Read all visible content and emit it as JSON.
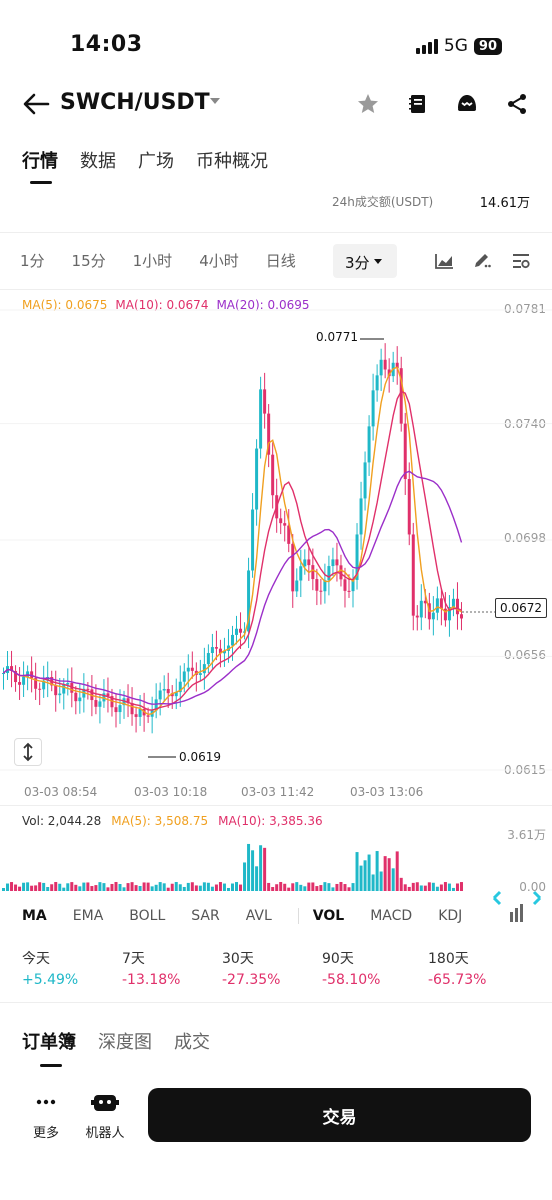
{
  "status": {
    "time": "14:03",
    "network": "5G",
    "battery": "90"
  },
  "header": {
    "pair": "SWCH/USDT"
  },
  "main_tabs": [
    "行情",
    "数据",
    "广场",
    "币种概况"
  ],
  "stats": {
    "vol24_label": "24h成交额(USDT)",
    "vol24_value": "14.61万"
  },
  "intervals": [
    "1分",
    "15分",
    "1小时",
    "4小时",
    "日线"
  ],
  "interval_selected": "3分",
  "ma": {
    "ma5": "MA(5): 0.0675",
    "ma10": "MA(10): 0.0674",
    "ma20": "MA(20): 0.0695"
  },
  "price_axis": [
    "0.0781",
    "0.0740",
    "0.0698",
    "0.0656",
    "0.0615"
  ],
  "current_price": "0.0672",
  "high_marker": "0.0771",
  "low_marker": "0.0619",
  "time_axis": [
    "03-03 08:54",
    "03-03 10:18",
    "03-03 11:42",
    "03-03 13:06"
  ],
  "volume": {
    "vol": "Vol: 2,044.28",
    "ma5": "MA(5): 3,508.75",
    "ma10": "MA(10): 3,385.36",
    "axis_top": "3.61万",
    "axis_bottom": "0.00"
  },
  "indicator_tabs": [
    "MA",
    "EMA",
    "BOLL",
    "SAR",
    "AVL",
    "VOL",
    "MACD",
    "KDJ"
  ],
  "performance": [
    {
      "label": "今天",
      "value": "+5.49%"
    },
    {
      "label": "7天",
      "value": "-13.18%"
    },
    {
      "label": "30天",
      "value": "-27.35%"
    },
    {
      "label": "90天",
      "value": "-58.10%"
    },
    {
      "label": "180天",
      "value": "-65.73%"
    }
  ],
  "book_tabs": [
    "订单簿",
    "深度图",
    "成交"
  ],
  "bottom": {
    "more": "更多",
    "bot": "机器人",
    "trade": "交易"
  },
  "colors": {
    "up": "#1fb8c8",
    "down": "#e0306a",
    "ma5": "#f0a020",
    "ma10": "#e0306a",
    "ma20": "#9b2fc9"
  },
  "chart_data": {
    "type": "candlestick",
    "x_ticks": [
      "03-03 08:54",
      "03-03 10:18",
      "03-03 11:42",
      "03-03 13:06"
    ],
    "y_ticks": [
      0.0781,
      0.074,
      0.0698,
      0.0656,
      0.0615
    ],
    "ylim": [
      0.0615,
      0.0781
    ],
    "annotations": [
      {
        "text": "0.0771"
      },
      {
        "text": "0.0619"
      }
    ],
    "current": 0.0672
  }
}
